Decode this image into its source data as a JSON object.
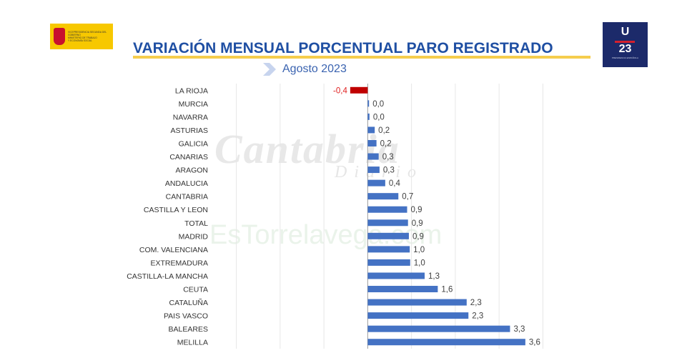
{
  "header": {
    "gov_ministry_text": "VICEPRESIDENCIA SEGUNDA DEL GOBIERNO · MINISTERIO DE TRABAJO Y ECONOMÍA SOCIAL",
    "eu_logo_top": "U",
    "eu_logo_bottom": "23",
    "eu_logo_small": "PRESIDENCIA ESPAÑOLA CONSEJO DE LA UNIÓN EUROPEA"
  },
  "watermark": {
    "line1": "Cantabria",
    "line2": "Diario",
    "line3": "EsTorrelavega.com"
  },
  "colors": {
    "positive_bar": "#4472c4",
    "negative_bar": "#c00000",
    "negative_label": "#e02020",
    "title": "#1f4fa3"
  },
  "chart_data": {
    "type": "bar",
    "orientation": "horizontal",
    "title": "VARIACIÓN MENSUAL PORCENTUAL PARO REGISTRADO",
    "subtitle": "Agosto 2023",
    "categories": [
      "LA RIOJA",
      "MURCIA",
      "NAVARRA",
      "ASTURIAS",
      "GALICIA",
      "CANARIAS",
      "ARAGON",
      "ANDALUCIA",
      "CANTABRIA",
      "CASTILLA Y LEON",
      "TOTAL",
      "MADRID",
      "COM. VALENCIANA",
      "EXTREMADURA",
      "CASTILLA-LA MANCHA",
      "CEUTA",
      "CATALUÑA",
      "PAIS VASCO",
      "BALEARES",
      "MELILLA"
    ],
    "values": [
      -0.4,
      0.03,
      0.04,
      0.16,
      0.2,
      0.25,
      0.27,
      0.4,
      0.7,
      0.9,
      0.92,
      0.94,
      0.96,
      0.97,
      1.3,
      1.6,
      2.26,
      2.3,
      3.25,
      3.6
    ],
    "data_labels": [
      "-0,4",
      "0,0",
      "0,0",
      "0,2",
      "0,2",
      "0,3",
      "0,3",
      "0,4",
      "0,7",
      "0,9",
      "0,9",
      "0,9",
      "1,0",
      "1,0",
      "1,3",
      "1,6",
      "2,3",
      "2,3",
      "3,3",
      "3,6"
    ],
    "xlim": [
      -3.5,
      4.5
    ],
    "grid": true,
    "legend": "none"
  }
}
